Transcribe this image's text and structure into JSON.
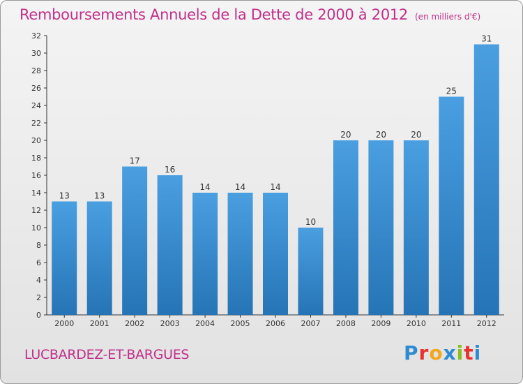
{
  "header": {
    "title": "Remboursements Annuels de la Dette de 2000 à 2012",
    "subtitle": "(en milliers d'€)"
  },
  "footer": {
    "commune": "LUCBARDEZ-ET-BARGUES",
    "brand": {
      "letters": [
        "P",
        "r",
        "o",
        "x",
        "i",
        "t",
        "i"
      ],
      "colors": [
        "#2e8bd1",
        "#e8322e",
        "#f0a81e",
        "#2e8bd1",
        "#8cbd1f",
        "#e8322e",
        "#2e8bd1"
      ]
    }
  },
  "chart_data": {
    "type": "bar",
    "title": "Remboursements Annuels de la Dette de 2000 à 2012",
    "subtitle": "(en milliers d'€)",
    "categories": [
      "2000",
      "2001",
      "2002",
      "2003",
      "2004",
      "2005",
      "2006",
      "2007",
      "2008",
      "2009",
      "2010",
      "2011",
      "2012"
    ],
    "values": [
      13,
      13,
      17,
      16,
      14,
      14,
      14,
      10,
      20,
      20,
      20,
      25,
      31
    ],
    "ylim": [
      0,
      32
    ],
    "yticks": [
      0,
      2,
      4,
      6,
      8,
      10,
      12,
      14,
      16,
      18,
      20,
      22,
      24,
      26,
      28,
      30,
      32
    ],
    "grid": false,
    "bar_color": "#4a9fe0",
    "bar_color_dark": "#2574b6"
  }
}
